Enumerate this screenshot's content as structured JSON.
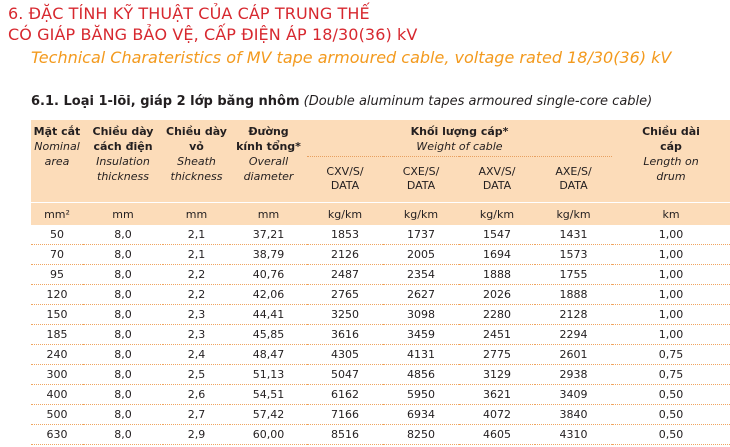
{
  "heading": {
    "line1": "6. ĐẶC TÍNH KỸ THUẬT CỦA CÁP TRUNG THẾ",
    "line2": "CÓ GIÁP BĂNG BẢO VỆ, CẤP ĐIỆN ÁP 18/30(36) kV",
    "english": "Technical Charateristics of MV tape armoured cable, voltage rated 18/30(36) kV"
  },
  "section": {
    "title_bold": "6.1. Loại 1-lõi, giáp 2 lớp băng nhôm",
    "title_italic": "(Double aluminum tapes armoured single-core cable)"
  },
  "table": {
    "headers": {
      "area": {
        "vi1": "Mặt cắt",
        "en1": "Nominal",
        "en2": "area"
      },
      "insulation": {
        "vi1": "Chiều dày",
        "vi2": "cách điện",
        "en1": "Insulation",
        "en2": "thickness"
      },
      "sheath": {
        "vi1": "Chiều dày",
        "vi2": "vỏ",
        "en1": "Sheath",
        "en2": "thickness"
      },
      "diameter": {
        "vi1": "Đường",
        "vi2": "kính tổng*",
        "en1": "Overall",
        "en2": "diameter"
      },
      "weight": {
        "vi": "Khối lượng cáp*",
        "en": "Weight of cable"
      },
      "weight_types": [
        {
          "l1": "CXV/S/",
          "l2": "DATA"
        },
        {
          "l1": "CXE/S/",
          "l2": "DATA"
        },
        {
          "l1": "AXV/S/",
          "l2": "DATA"
        },
        {
          "l1": "AXE/S/",
          "l2": "DATA"
        }
      ],
      "length": {
        "vi1": "Chiều dài",
        "vi2": "cáp",
        "en1": "Length on",
        "en2": "drum"
      }
    },
    "units": [
      "mm²",
      "mm",
      "mm",
      "mm",
      "kg/km",
      "kg/km",
      "kg/km",
      "kg/km",
      "km"
    ],
    "rows": [
      [
        "50",
        "8,0",
        "2,1",
        "37,21",
        "1853",
        "1737",
        "1547",
        "1431",
        "1,00"
      ],
      [
        "70",
        "8,0",
        "2,1",
        "38,79",
        "2126",
        "2005",
        "1694",
        "1573",
        "1,00"
      ],
      [
        "95",
        "8,0",
        "2,2",
        "40,76",
        "2487",
        "2354",
        "1888",
        "1755",
        "1,00"
      ],
      [
        "120",
        "8,0",
        "2,2",
        "42,06",
        "2765",
        "2627",
        "2026",
        "1888",
        "1,00"
      ],
      [
        "150",
        "8,0",
        "2,3",
        "44,41",
        "3250",
        "3098",
        "2280",
        "2128",
        "1,00"
      ],
      [
        "185",
        "8,0",
        "2,3",
        "45,85",
        "3616",
        "3459",
        "2451",
        "2294",
        "1,00"
      ],
      [
        "240",
        "8,0",
        "2,4",
        "48,47",
        "4305",
        "4131",
        "2775",
        "2601",
        "0,75"
      ],
      [
        "300",
        "8,0",
        "2,5",
        "51,13",
        "5047",
        "4856",
        "3129",
        "2938",
        "0,75"
      ],
      [
        "400",
        "8,0",
        "2,6",
        "54,51",
        "6162",
        "5950",
        "3621",
        "3409",
        "0,50"
      ],
      [
        "500",
        "8,0",
        "2,7",
        "57,42",
        "7166",
        "6934",
        "4072",
        "3840",
        "0,50"
      ],
      [
        "630",
        "8,0",
        "2,9",
        "60,00",
        "8516",
        "8250",
        "4605",
        "4310",
        "0,50"
      ]
    ]
  }
}
